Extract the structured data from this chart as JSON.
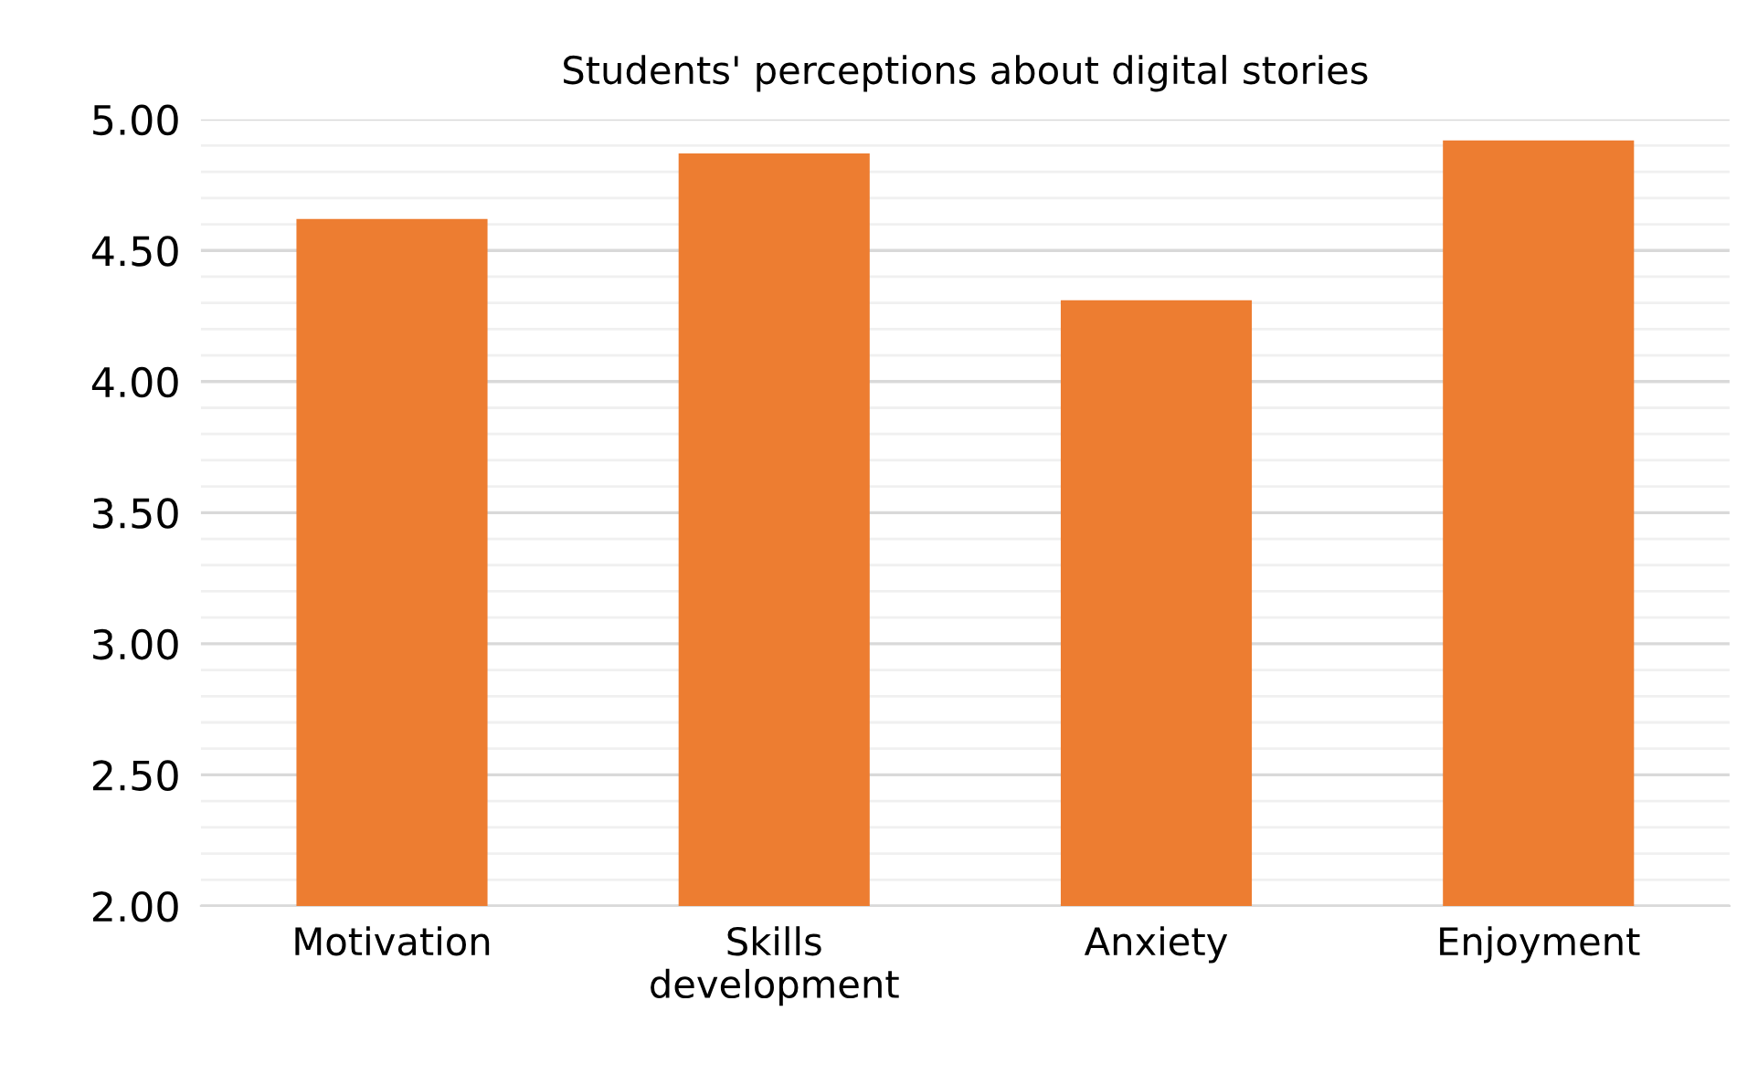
{
  "chart_data": {
    "type": "bar",
    "title": "Students' perceptions about digital stories",
    "categories": [
      "Motivation",
      "Skills\ndevelopment",
      "Anxiety",
      "Enjoyment"
    ],
    "values": [
      4.62,
      4.87,
      4.31,
      4.92
    ],
    "color": "#ed7d31",
    "ylim": [
      2,
      5
    ],
    "yticks": [
      {
        "value": 2,
        "label": "2.00"
      },
      {
        "value": 2.5,
        "label": "2.50"
      },
      {
        "value": 3,
        "label": "3.00"
      },
      {
        "value": 3.5,
        "label": "3.50"
      },
      {
        "value": 4,
        "label": "4.00"
      },
      {
        "value": 4.5,
        "label": "4.50"
      },
      {
        "value": 5,
        "label": "5.00"
      }
    ],
    "grid": "y"
  }
}
